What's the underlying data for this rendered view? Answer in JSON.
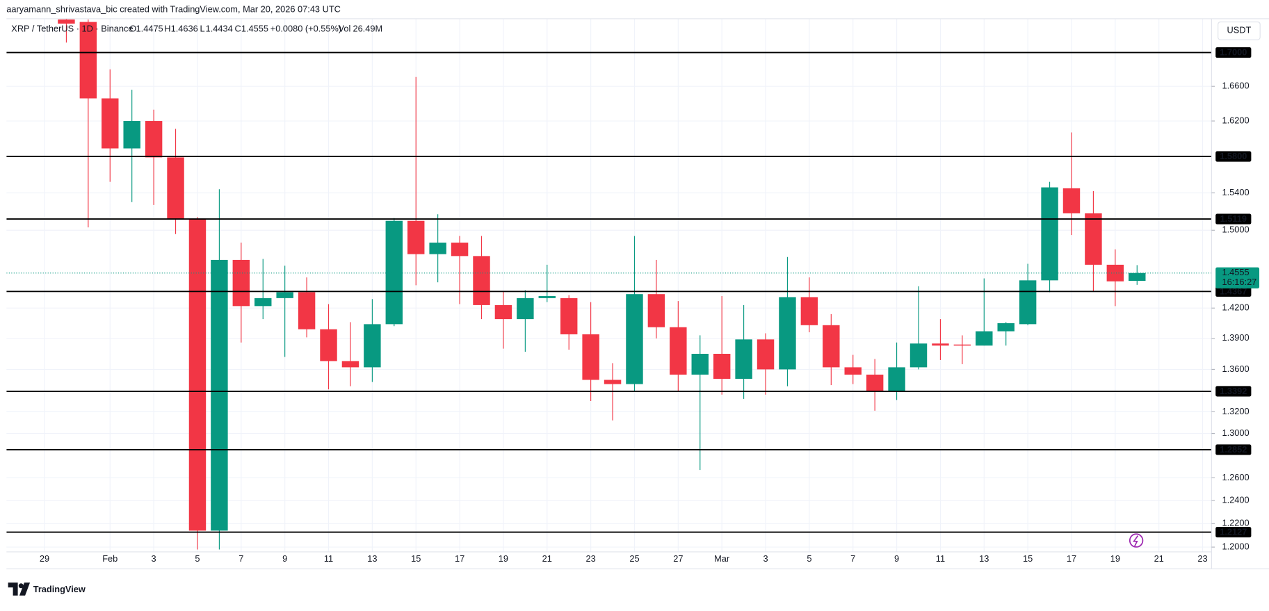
{
  "attribution": "aaryamann_shrivastava_bic created with TradingView.com, Mar 20, 2026 07:43 UTC",
  "symbol": "XRP / TetherUS · 1D · Binance",
  "ohlc_header": {
    "o_label": "O",
    "o": "1.4475",
    "h_label": "H",
    "h": "1.4636",
    "l_label": "L",
    "l": "1.4434",
    "c_label": "C",
    "c": "1.4555",
    "change": "+0.0080 (+0.55%)",
    "vol_label": "Vol",
    "vol": "26.49M"
  },
  "currency": "USDT",
  "logo": "TradingView",
  "chart_data": {
    "type": "candlestick",
    "log_scale": true,
    "grid": true,
    "up_color": "#089981",
    "down_color": "#f23645",
    "categories": [
      "29",
      null,
      null,
      "Feb",
      null,
      "3",
      null,
      "5",
      null,
      "7",
      null,
      "9",
      null,
      "11",
      null,
      "13",
      null,
      "15",
      null,
      "17",
      null,
      "19",
      null,
      "21",
      null,
      "23",
      null,
      "25",
      null,
      "27",
      null,
      "Mar",
      null,
      "3",
      null,
      "5",
      null,
      "7",
      null,
      "9",
      null,
      "11",
      null,
      "13",
      null,
      "15",
      null,
      "17",
      null,
      "19",
      null,
      "21",
      null,
      "23"
    ],
    "open": [
      null,
      1.74,
      1.737,
      1.646,
      1.589,
      1.62,
      1.579,
      1.512,
      1.214,
      1.469,
      1.422,
      1.43,
      1.436,
      1.399,
      1.368,
      1.362,
      1.404,
      1.51,
      1.475,
      1.487,
      1.473,
      1.423,
      1.409,
      1.43,
      1.43,
      1.394,
      1.35,
      1.346,
      1.434,
      1.401,
      1.355,
      1.375,
      1.351,
      1.389,
      1.36,
      1.431,
      1.403,
      1.362,
      1.355,
      1.339,
      1.362,
      1.385,
      1.384,
      1.383,
      1.397,
      1.404,
      1.448,
      1.545,
      1.518,
      1.464,
      1.4475,
      null,
      null,
      null
    ],
    "high": [
      null,
      1.745,
      1.74,
      1.68,
      1.656,
      1.633,
      1.611,
      1.514,
      1.544,
      1.487,
      1.47,
      1.463,
      1.451,
      1.424,
      1.406,
      1.429,
      1.513,
      1.671,
      1.517,
      1.494,
      1.494,
      1.437,
      1.438,
      1.464,
      1.433,
      1.426,
      1.366,
      1.494,
      1.469,
      1.427,
      1.393,
      1.432,
      1.423,
      1.395,
      1.472,
      1.451,
      1.414,
      1.374,
      1.37,
      1.386,
      1.442,
      1.409,
      1.393,
      1.45,
      1.406,
      1.465,
      1.552,
      1.607,
      1.542,
      1.48,
      1.4636,
      null,
      null,
      null
    ],
    "low": [
      null,
      1.712,
      1.503,
      1.552,
      1.53,
      1.527,
      1.496,
      1.198,
      1.198,
      1.386,
      1.409,
      1.372,
      1.391,
      1.341,
      1.344,
      1.348,
      1.402,
      1.443,
      1.446,
      1.424,
      1.409,
      1.38,
      1.377,
      1.426,
      1.379,
      1.33,
      1.312,
      1.339,
      1.39,
      1.339,
      1.267,
      1.336,
      1.332,
      1.336,
      1.344,
      1.396,
      1.345,
      1.346,
      1.321,
      1.331,
      1.36,
      1.369,
      1.365,
      1.383,
      1.383,
      1.403,
      1.436,
      1.495,
      1.437,
      1.422,
      1.4434,
      null,
      null,
      null
    ],
    "close": [
      null,
      1.735,
      1.646,
      1.589,
      1.62,
      1.579,
      1.512,
      1.214,
      1.469,
      1.422,
      1.43,
      1.436,
      1.399,
      1.368,
      1.362,
      1.404,
      1.51,
      1.475,
      1.487,
      1.473,
      1.423,
      1.409,
      1.43,
      1.432,
      1.394,
      1.35,
      1.346,
      1.434,
      1.401,
      1.355,
      1.375,
      1.351,
      1.389,
      1.36,
      1.431,
      1.403,
      1.362,
      1.355,
      1.339,
      1.362,
      1.385,
      1.383,
      1.383,
      1.397,
      1.405,
      1.448,
      1.546,
      1.518,
      1.464,
      1.447,
      1.4555,
      null,
      null,
      null
    ],
    "ylim": [
      1.196,
      1.741
    ],
    "yticks": [
      {
        "value": 1.2,
        "label": "1.2000"
      },
      {
        "value": 1.22,
        "label": "1.2200"
      },
      {
        "value": 1.24,
        "label": "1.2400"
      },
      {
        "value": 1.26,
        "label": "1.2600"
      },
      {
        "value": 1.3,
        "label": "1.3000"
      },
      {
        "value": 1.32,
        "label": "1.3200"
      },
      {
        "value": 1.36,
        "label": "1.3600"
      },
      {
        "value": 1.39,
        "label": "1.3900"
      },
      {
        "value": 1.42,
        "label": "1.4200"
      },
      {
        "value": 1.5,
        "label": "1.5000"
      },
      {
        "value": 1.54,
        "label": "1.5400"
      },
      {
        "value": 1.62,
        "label": "1.6200"
      },
      {
        "value": 1.66,
        "label": "1.6600"
      }
    ],
    "levels": [
      {
        "value": 1.7,
        "label": "1.7000"
      },
      {
        "value": 1.58,
        "label": "1.5800"
      },
      {
        "value": 1.5119,
        "label": "1.5119"
      },
      {
        "value": 1.4367,
        "label": "1.4367"
      },
      {
        "value": 1.3392,
        "label": "1.3392"
      },
      {
        "value": 1.2852,
        "label": "1.2852"
      },
      {
        "value": 1.2127,
        "label": "1.2127"
      }
    ],
    "last_price": {
      "value": 1.4555,
      "label": "1.4555"
    },
    "countdown": "16:16:27"
  }
}
